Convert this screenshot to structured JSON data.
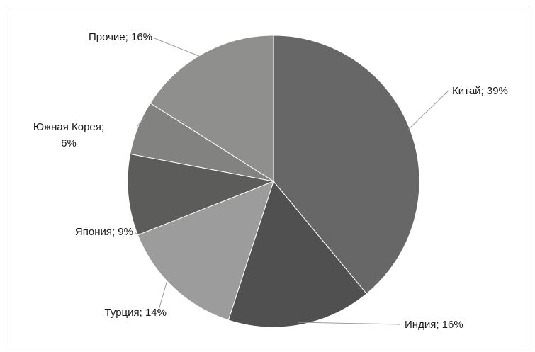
{
  "chart_data": {
    "type": "pie",
    "title": "",
    "series": [
      {
        "values": [
          39,
          16,
          14,
          9,
          6,
          16
        ]
      }
    ],
    "categories": [
      "Китай",
      "Индия",
      "Турция",
      "Япония",
      "Южная Корея",
      "Прочие"
    ],
    "values": [
      39,
      16,
      14,
      9,
      6,
      16
    ],
    "colors": [
      "#676767",
      "#4f504f",
      "#9c9c9c",
      "#5c5c5a",
      "#828280",
      "#8f8f8e"
    ],
    "labels": [
      {
        "lines": [
          "Китай; 39%"
        ]
      },
      {
        "lines": [
          "Индия; 16%"
        ]
      },
      {
        "lines": [
          "Турция; 14%"
        ]
      },
      {
        "lines": [
          "Япония; 9%"
        ]
      },
      {
        "lines": [
          "Южная Корея;",
          "6%"
        ]
      },
      {
        "lines": [
          "Прочие; 16%"
        ]
      }
    ],
    "start_angle": "12 o'clock",
    "direction": "clockwise",
    "legend": "none"
  }
}
